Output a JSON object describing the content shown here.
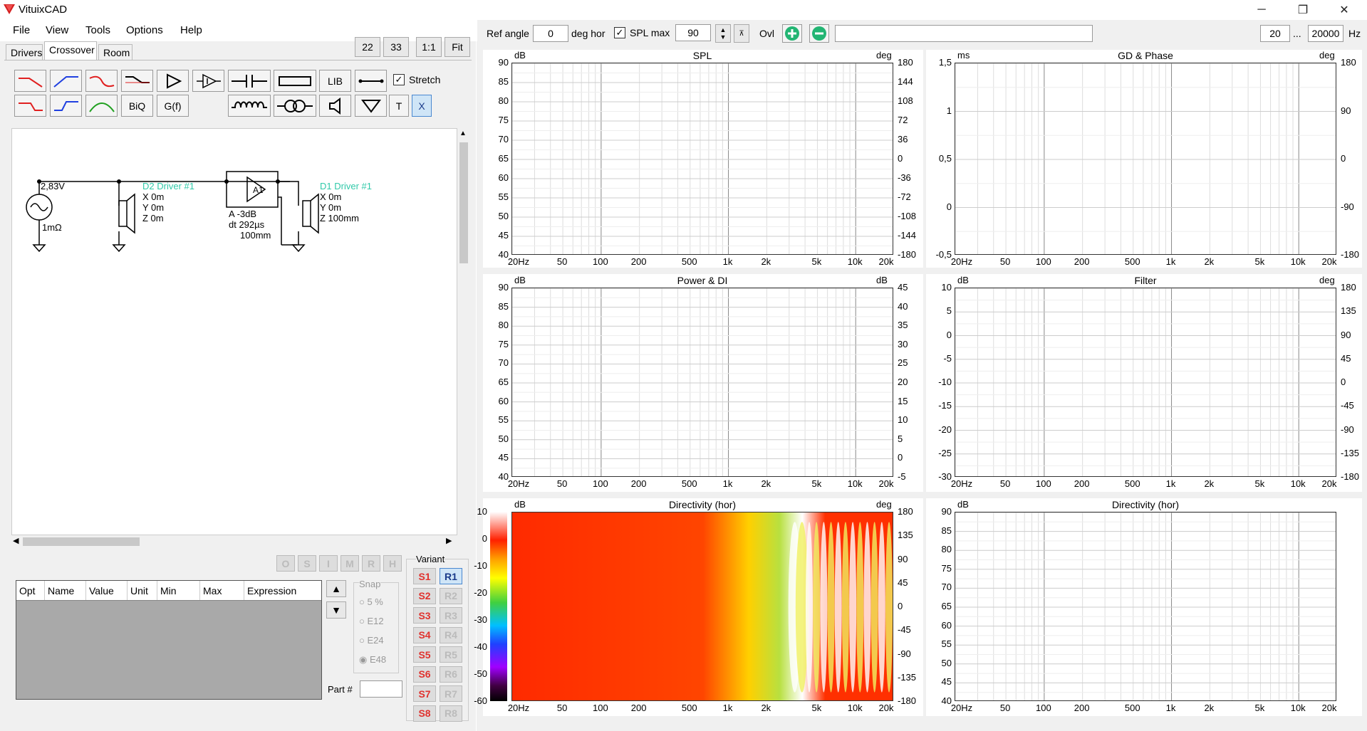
{
  "window": {
    "title": "VituixCAD",
    "min_icon": "minimize-icon",
    "max_icon": "restore-icon",
    "close_icon": "close-icon"
  },
  "menu": [
    "File",
    "View",
    "Tools",
    "Options",
    "Help"
  ],
  "tabs": [
    "Drivers",
    "Crossover",
    "Room"
  ],
  "zoom_buttons": [
    "22",
    "33",
    "1:1",
    "Fit"
  ],
  "toolbar": {
    "lib": "LIB",
    "biq": "BiQ",
    "gf": "G(f)",
    "t": "T",
    "x": "X",
    "stretch": "Stretch"
  },
  "schematic": {
    "source_voltage": "2,83V",
    "source_impedance": "1mΩ",
    "driver2": {
      "name": "D2 Driver #1",
      "x": "X 0m",
      "y": "Y 0m",
      "z": "Z 0m"
    },
    "amp": {
      "name": "A1",
      "gain": "A -3dB",
      "delay": "dt 292µs",
      "dist": "100mm"
    },
    "driver1": {
      "name": "D1 Driver #1",
      "x": "X 0m",
      "y": "Y 0m",
      "z": "Z 100mm"
    }
  },
  "part_filter_buttons": [
    "O",
    "S",
    "I",
    "M",
    "R",
    "H"
  ],
  "opt_table": {
    "columns": [
      "Opt",
      "Name",
      "Value",
      "Unit",
      "Min",
      "Max",
      "Expression"
    ]
  },
  "snap": {
    "title": "Snap",
    "options": [
      "5 %",
      "E12",
      "E24",
      "E48"
    ],
    "selected": "E48"
  },
  "part_no_label": "Part #",
  "variant": {
    "title": "Variant",
    "s": [
      "S1",
      "S2",
      "S3",
      "S4",
      "S5",
      "S6",
      "S7",
      "S8"
    ],
    "r": [
      "R1",
      "R2",
      "R3",
      "R4",
      "R5",
      "R6",
      "R7",
      "R8"
    ],
    "selected": "R1"
  },
  "topbar": {
    "ref_angle_label": "Ref angle",
    "ref_angle_value": "0",
    "deg_hor": "deg hor",
    "spl_max_label": "SPL max",
    "spl_max_value": "90",
    "ovl_label": "Ovl",
    "f_min": "20",
    "dots": "...",
    "f_max": "20000",
    "hz": "Hz"
  },
  "x_ticks": [
    "20Hz",
    "50",
    "100",
    "200",
    "500",
    "1k",
    "2k",
    "5k",
    "10k",
    "20k"
  ],
  "charts": {
    "spl": {
      "title": "SPL",
      "yunit": "dB",
      "y2unit": "deg",
      "yticks": [
        "90",
        "85",
        "80",
        "75",
        "70",
        "65",
        "60",
        "55",
        "50",
        "45",
        "40"
      ],
      "y2ticks": [
        "180",
        "144",
        "108",
        "72",
        "36",
        "0",
        "-36",
        "-72",
        "-108",
        "-144",
        "-180"
      ]
    },
    "gd": {
      "title": "GD & Phase",
      "yunit": "ms",
      "y2unit": "deg",
      "yticks": [
        "1,5",
        "1",
        "0,5",
        "0",
        "-0,5"
      ],
      "y2ticks": [
        "180",
        "90",
        "0",
        "-90",
        "-180"
      ]
    },
    "power": {
      "title": "Power & DI",
      "yunit": "dB",
      "y2unit": "dB",
      "yticks": [
        "90",
        "85",
        "80",
        "75",
        "70",
        "65",
        "60",
        "55",
        "50",
        "45",
        "40"
      ],
      "y2ticks": [
        "45",
        "40",
        "35",
        "30",
        "25",
        "20",
        "15",
        "10",
        "5",
        "0",
        "-5"
      ]
    },
    "filter": {
      "title": "Filter",
      "yunit": "dB",
      "y2unit": "deg",
      "yticks": [
        "10",
        "5",
        "0",
        "-5",
        "-10",
        "-15",
        "-20",
        "-25",
        "-30"
      ],
      "y2ticks": [
        "180",
        "135",
        "90",
        "45",
        "0",
        "-45",
        "-90",
        "-135",
        "-180"
      ]
    },
    "dirmap": {
      "title": "Directivity (hor)",
      "yunit": "dB",
      "y2unit": "deg",
      "yticks": [
        "10",
        "0",
        "-10",
        "-20",
        "-30",
        "-40",
        "-50",
        "-60"
      ],
      "y2ticks": [
        "180",
        "135",
        "90",
        "45",
        "0",
        "-45",
        "-90",
        "-135",
        "-180"
      ]
    },
    "dirlines": {
      "title": "Directivity (hor)",
      "yunit": "dB",
      "yticks": [
        "90",
        "85",
        "80",
        "75",
        "70",
        "65",
        "60",
        "55",
        "50",
        "45",
        "40"
      ]
    }
  }
}
